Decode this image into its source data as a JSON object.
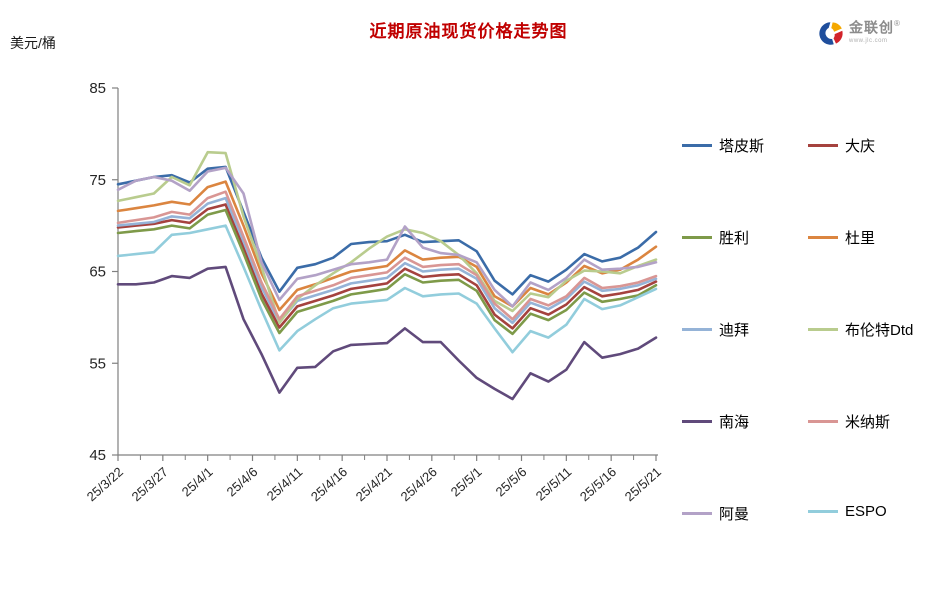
{
  "header": {
    "title": "近期原油现货价格走势图",
    "title_color": "#c00000",
    "y_unit_label": "美元/桶"
  },
  "logo": {
    "name": "金联创",
    "registered_mark": "®",
    "url_text": "www.jlc.com",
    "icon_colors": {
      "blue": "#1f4e9c",
      "red": "#d2232a",
      "yellow": "#f5a800"
    }
  },
  "chart_data": {
    "type": "line",
    "title": "近期原油现货价格走势图",
    "ylabel": "美元/桶",
    "xlabel": "",
    "ylim": [
      45,
      85
    ],
    "y_ticks": [
      45,
      55,
      65,
      75,
      85
    ],
    "grid": false,
    "legend_position": "right",
    "axis_color": "#808080",
    "x_tick_labels": [
      "25/3/22",
      "25/3/27",
      "25/4/1",
      "25/4/6",
      "25/4/11",
      "25/4/16",
      "25/4/21",
      "25/4/26",
      "25/5/1",
      "25/5/6",
      "25/5/11",
      "25/5/16",
      "25/5/21"
    ],
    "x_tick_days": [
      0,
      5,
      10,
      15,
      20,
      25,
      30,
      35,
      40,
      45,
      50,
      55,
      60
    ],
    "x": [
      "25/3/22",
      "25/3/24",
      "25/3/26",
      "25/3/28",
      "25/3/30",
      "25/4/1",
      "25/4/3",
      "25/4/5",
      "25/4/7",
      "25/4/9",
      "25/4/11",
      "25/4/13",
      "25/4/15",
      "25/4/17",
      "25/4/19",
      "25/4/21",
      "25/4/23",
      "25/4/25",
      "25/4/27",
      "25/4/29",
      "25/5/1",
      "25/5/3",
      "25/5/5",
      "25/5/7",
      "25/5/9",
      "25/5/11",
      "25/5/13",
      "25/5/15",
      "25/5/17",
      "25/5/19",
      "25/5/21"
    ],
    "x_days": [
      0,
      2,
      4,
      6,
      8,
      10,
      12,
      14,
      16,
      18,
      20,
      22,
      24,
      26,
      28,
      30,
      32,
      34,
      36,
      38,
      40,
      42,
      44,
      46,
      48,
      50,
      52,
      54,
      56,
      58,
      60
    ],
    "series": [
      {
        "name": "塔皮斯",
        "color": "#3B6CA8",
        "values": [
          74.5,
          74.9,
          75.3,
          75.5,
          74.7,
          76.2,
          76.4,
          71.5,
          66.5,
          62.8,
          65.4,
          65.8,
          66.5,
          68.0,
          68.2,
          68.3,
          69.0,
          68.2,
          68.3,
          68.4,
          67.2,
          64.0,
          62.5,
          64.6,
          63.9,
          65.2,
          66.9,
          66.1,
          66.5,
          67.6,
          69.3
        ]
      },
      {
        "name": "大庆",
        "color": "#A5423E",
        "values": [
          69.8,
          70.0,
          70.2,
          70.6,
          70.3,
          71.8,
          72.3,
          67.6,
          62.6,
          58.9,
          61.2,
          61.8,
          62.4,
          63.1,
          63.4,
          63.7,
          65.3,
          64.4,
          64.6,
          64.7,
          63.5,
          60.3,
          58.8,
          61.0,
          60.3,
          61.4,
          63.3,
          62.3,
          62.6,
          63.0,
          63.9
        ]
      },
      {
        "name": "胜利",
        "color": "#7E9A49",
        "values": [
          69.2,
          69.4,
          69.6,
          70.0,
          69.7,
          71.2,
          71.7,
          67.0,
          62.0,
          58.3,
          60.6,
          61.2,
          61.8,
          62.5,
          62.8,
          63.1,
          64.7,
          63.8,
          64.0,
          64.1,
          62.9,
          59.7,
          58.2,
          60.4,
          59.7,
          60.8,
          62.7,
          61.7,
          62.0,
          62.4,
          63.5
        ]
      },
      {
        "name": "杜里",
        "color": "#DB8540",
        "values": [
          71.6,
          71.9,
          72.2,
          72.6,
          72.3,
          74.2,
          74.8,
          70.0,
          64.8,
          60.8,
          63.0,
          63.6,
          64.3,
          65.0,
          65.3,
          65.6,
          67.3,
          66.3,
          66.5,
          66.6,
          65.5,
          62.3,
          61.2,
          63.2,
          62.5,
          63.8,
          65.6,
          64.8,
          65.2,
          66.3,
          67.7
        ]
      },
      {
        "name": "迪拜",
        "color": "#95B3D7",
        "values": [
          70.0,
          70.2,
          70.4,
          71.0,
          70.8,
          72.4,
          73.0,
          68.3,
          63.3,
          59.5,
          61.8,
          62.4,
          63.0,
          63.7,
          64.0,
          64.3,
          65.9,
          65.0,
          65.2,
          65.3,
          64.2,
          61.0,
          59.4,
          61.6,
          60.9,
          62.0,
          63.9,
          62.9,
          63.1,
          63.5,
          64.2
        ]
      },
      {
        "name": "布伦特Dtd",
        "color": "#B9CC8E",
        "values": [
          72.7,
          73.1,
          73.5,
          75.3,
          74.4,
          78.0,
          77.9,
          71.0,
          65.5,
          59.4,
          62.0,
          63.5,
          64.8,
          66.0,
          67.5,
          68.8,
          69.6,
          69.2,
          68.3,
          66.8,
          64.8,
          61.8,
          60.7,
          62.6,
          62.2,
          64.0,
          65.1,
          65.0,
          64.8,
          65.6,
          66.3
        ]
      },
      {
        "name": "南海",
        "color": "#604A7B",
        "values": [
          63.6,
          63.6,
          63.8,
          64.5,
          64.3,
          65.3,
          65.5,
          59.8,
          56.0,
          51.8,
          54.5,
          54.6,
          56.3,
          57.0,
          57.1,
          57.2,
          58.8,
          57.3,
          57.3,
          55.3,
          53.4,
          52.2,
          51.1,
          53.9,
          53.0,
          54.3,
          57.3,
          55.6,
          56.0,
          56.6,
          57.8
        ]
      },
      {
        "name": "米纳斯",
        "color": "#D99694",
        "values": [
          70.3,
          70.6,
          70.9,
          71.5,
          71.2,
          73.0,
          73.7,
          68.8,
          63.8,
          59.8,
          62.3,
          62.9,
          63.5,
          64.3,
          64.6,
          64.9,
          66.5,
          65.5,
          65.7,
          65.8,
          64.6,
          61.5,
          59.8,
          62.0,
          61.3,
          62.3,
          64.3,
          63.2,
          63.4,
          63.8,
          64.5
        ]
      },
      {
        "name": "阿曼",
        "color": "#B3A2C7",
        "values": [
          73.9,
          74.9,
          75.3,
          74.9,
          73.8,
          75.9,
          76.3,
          73.5,
          66.0,
          61.9,
          64.2,
          64.6,
          65.2,
          65.8,
          66.0,
          66.3,
          69.9,
          67.6,
          67.0,
          66.8,
          66.0,
          63.0,
          61.2,
          63.8,
          63.0,
          64.3,
          66.3,
          65.2,
          65.3,
          65.5,
          66.0
        ]
      },
      {
        "name": "ESPO",
        "color": "#92CDDC",
        "values": [
          66.7,
          66.9,
          67.1,
          69.0,
          69.2,
          69.6,
          70.0,
          65.5,
          60.8,
          56.4,
          58.5,
          59.8,
          61.0,
          61.5,
          61.7,
          61.9,
          63.2,
          62.3,
          62.5,
          62.6,
          61.5,
          58.8,
          56.2,
          58.5,
          57.8,
          59.2,
          62.0,
          60.9,
          61.3,
          62.2,
          63.1
        ]
      }
    ],
    "legend_grid_order": [
      "塔皮斯",
      "大庆",
      "胜利",
      "杜里",
      "迪拜",
      "布伦特Dtd",
      "南海",
      "米纳斯",
      "阿曼",
      "ESPO"
    ]
  }
}
